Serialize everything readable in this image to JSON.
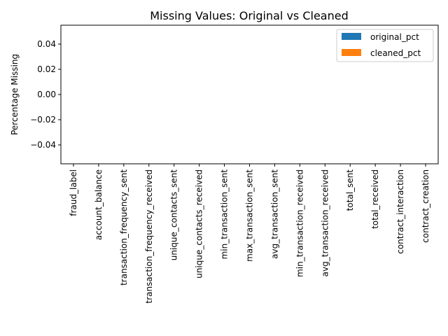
{
  "chart_data": {
    "type": "bar",
    "title": "Missing Values: Original vs Cleaned",
    "xlabel": "",
    "ylabel": "Percentage Missing",
    "categories": [
      "fraud_label",
      "account_balance",
      "transaction_frequency_sent",
      "transaction_frequency_received",
      "unique_contacts_sent",
      "unique_contacts_received",
      "min_transaction_sent",
      "max_transaction_sent",
      "avg_transaction_sent",
      "min_transaction_received",
      "avg_transaction_received",
      "total_sent",
      "total_received",
      "contract_interaction",
      "contract_creation"
    ],
    "series": [
      {
        "name": "original_pct",
        "color": "#1f77b4",
        "values": [
          0,
          0,
          0,
          0,
          0,
          0,
          0,
          0,
          0,
          0,
          0,
          0,
          0,
          0,
          0
        ]
      },
      {
        "name": "cleaned_pct",
        "color": "#ff7f0e",
        "values": [
          0,
          0,
          0,
          0,
          0,
          0,
          0,
          0,
          0,
          0,
          0,
          0,
          0,
          0,
          0
        ]
      }
    ],
    "ylim": [
      -0.055,
      0.055
    ],
    "yticks": [
      {
        "value": -0.04,
        "label": "−0.04"
      },
      {
        "value": -0.02,
        "label": "−0.02"
      },
      {
        "value": 0.0,
        "label": "0.00"
      },
      {
        "value": 0.02,
        "label": "0.02"
      },
      {
        "value": 0.04,
        "label": "0.04"
      }
    ],
    "grid": false,
    "legend": "top-right"
  }
}
